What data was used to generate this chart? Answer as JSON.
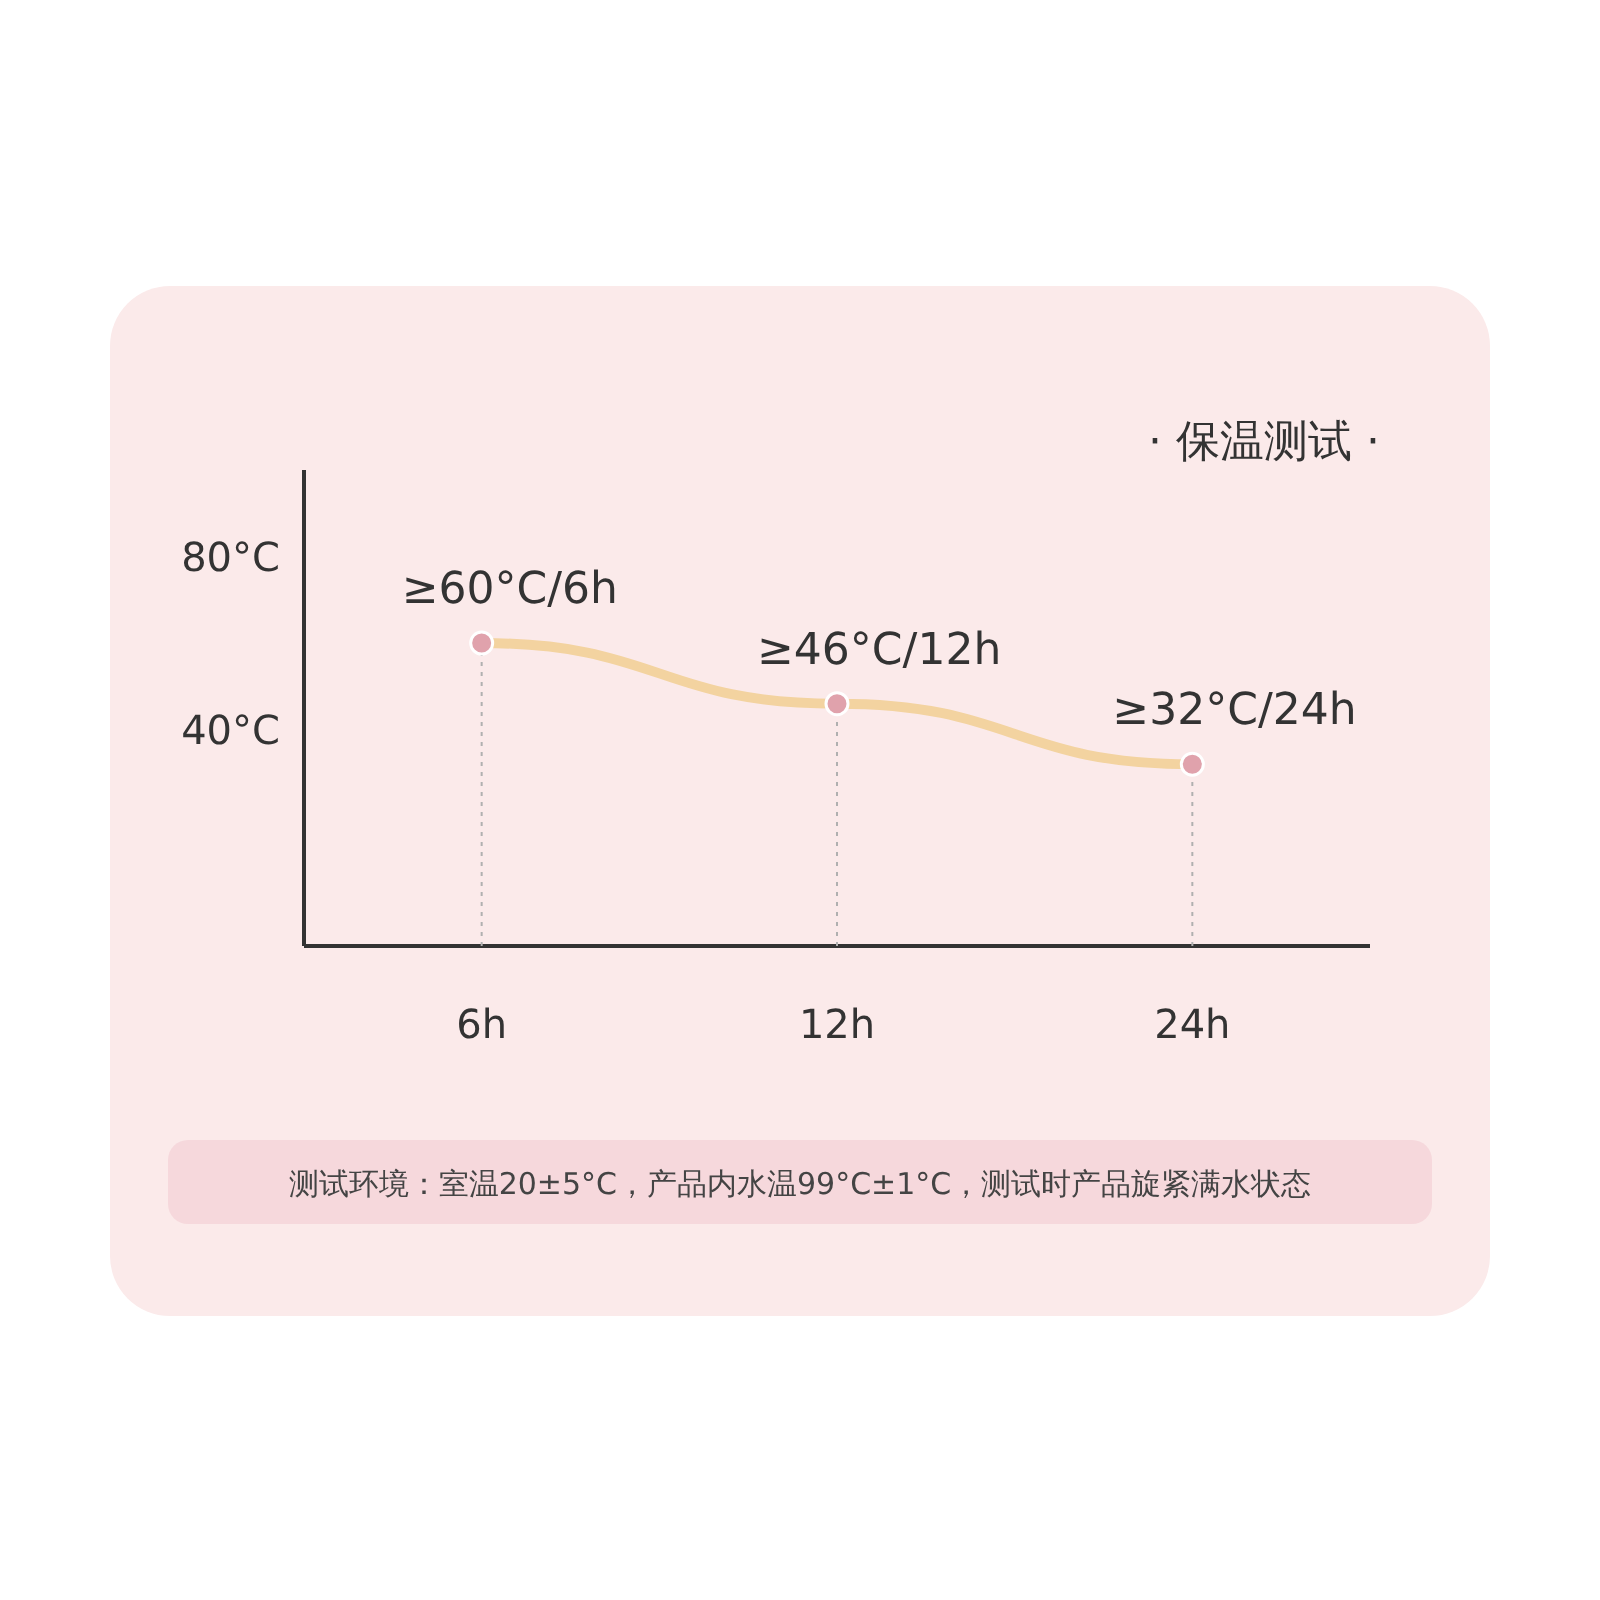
{
  "chart_data": {
    "type": "line",
    "title": "· 保温测试 ·",
    "categories": [
      "6h",
      "12h",
      "24h"
    ],
    "series": [
      {
        "color": "#f3d3a0",
        "values": [
          60,
          46,
          32
        ],
        "value_labels": [
          "≥60°C/6h",
          "≥46°C/12h",
          "≥32°C/24h"
        ]
      }
    ],
    "marker": "circle",
    "ylim": [
      -10,
      100
    ],
    "yticks": [
      {
        "value": 40,
        "label": "40°C"
      },
      {
        "value": 80,
        "label": "80°C"
      }
    ],
    "ref_lines": [
      {
        "axis": "x",
        "value": "6h",
        "color": "#b0b0b0",
        "line_style": "dotted"
      },
      {
        "axis": "x",
        "value": "12h",
        "color": "#b0b0b0",
        "line_style": "dotted"
      },
      {
        "axis": "x",
        "value": "24h",
        "color": "#b0b0b0",
        "line_style": "dotted"
      }
    ],
    "grid": false,
    "annotations": [
      "测试环境：室温20±5°C，产品内水温99°C±1°C，测试时产品旋紧满水状态"
    ]
  }
}
